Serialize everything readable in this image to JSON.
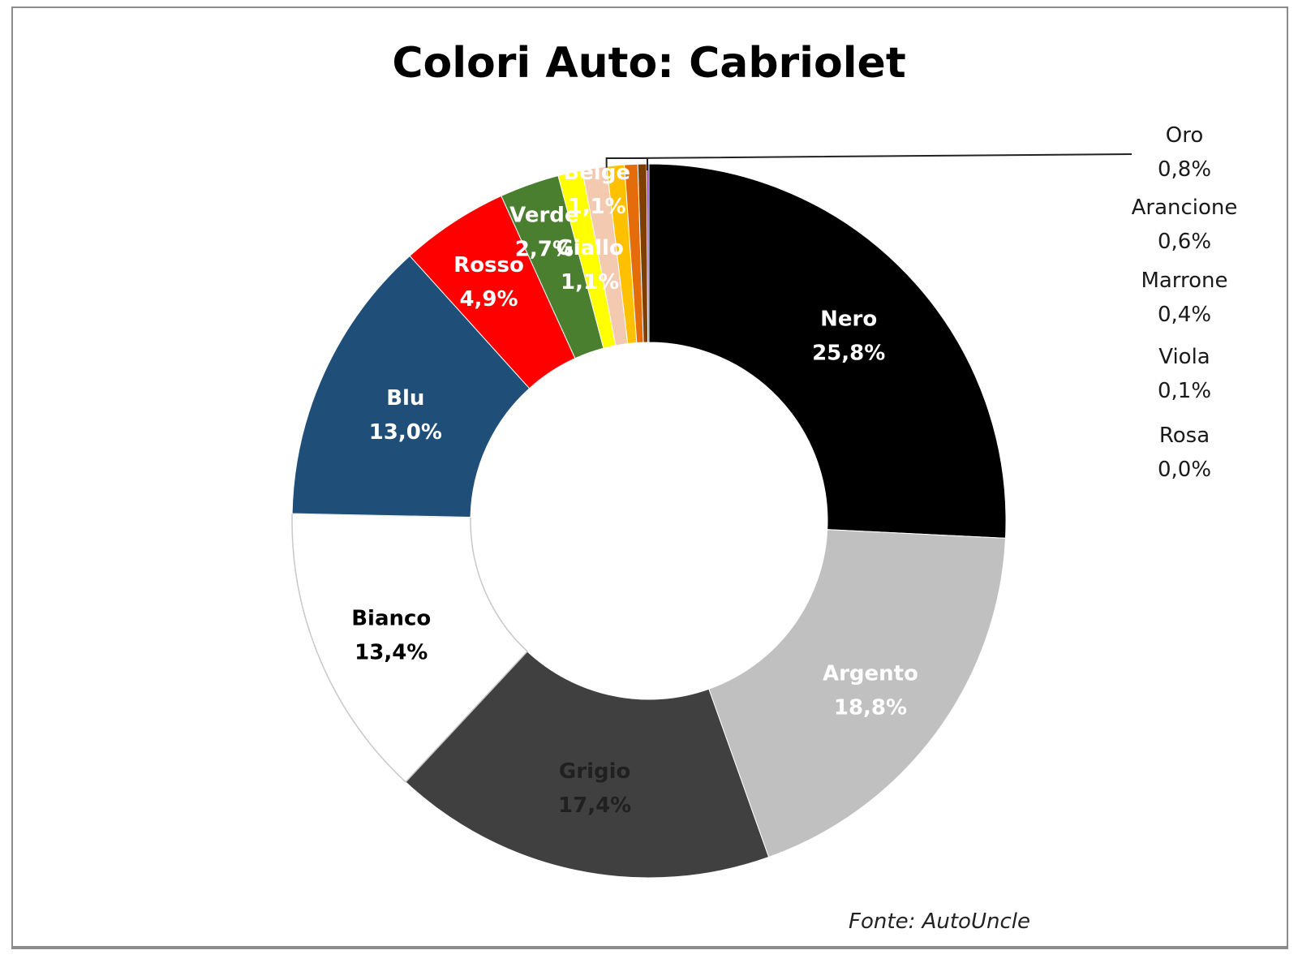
{
  "chart_data": {
    "type": "pie",
    "variant": "doughnut",
    "title": "Colori Auto: Cabriolet",
    "source": "Fonte: AutoUncle",
    "slices": [
      {
        "name": "Nero",
        "value": 25.8,
        "label": "25,8%",
        "color": "#000000",
        "text_color": "#ffffff"
      },
      {
        "name": "Argento",
        "value": 18.8,
        "label": "18,8%",
        "color": "#c0c0c0",
        "text_color": "#ffffff"
      },
      {
        "name": "Grigio",
        "value": 17.4,
        "label": "17,4%",
        "color": "#404040",
        "text_color": "#202020"
      },
      {
        "name": "Bianco",
        "value": 13.4,
        "label": "13,4%",
        "color": "#ffffff",
        "text_color": "#000000"
      },
      {
        "name": "Blu",
        "value": 13.0,
        "label": "13,0%",
        "color": "#1f4e79",
        "text_color": "#ffffff"
      },
      {
        "name": "Rosso",
        "value": 4.9,
        "label": "4,9%",
        "color": "#ff0000",
        "text_color": "#ffffff"
      },
      {
        "name": "Verde",
        "value": 2.7,
        "label": "2,7%",
        "color": "#4a7f2f",
        "text_color": "#ffffff"
      },
      {
        "name": "Giallo",
        "value": 1.1,
        "label": "1,1%",
        "color": "#ffff00",
        "text_color": "#ffffff"
      },
      {
        "name": "Beige",
        "value": 1.1,
        "label": "1,1%",
        "color": "#f3c9b0",
        "text_color": "#ffffff"
      },
      {
        "name": "Oro",
        "value": 0.8,
        "label": "0,8%",
        "color": "#ffc000",
        "text_color": "#1a1a1a"
      },
      {
        "name": "Arancione",
        "value": 0.6,
        "label": "0,6%",
        "color": "#e46c0a",
        "text_color": "#1a1a1a"
      },
      {
        "name": "Marrone",
        "value": 0.4,
        "label": "0,4%",
        "color": "#7f3f00",
        "text_color": "#1a1a1a"
      },
      {
        "name": "Viola",
        "value": 0.1,
        "label": "0,1%",
        "color": "#7030a0",
        "text_color": "#1a1a1a"
      },
      {
        "name": "Rosa",
        "value": 0.0,
        "label": "0,0%",
        "color": "#ff99cc",
        "text_color": "#1a1a1a"
      }
    ]
  }
}
